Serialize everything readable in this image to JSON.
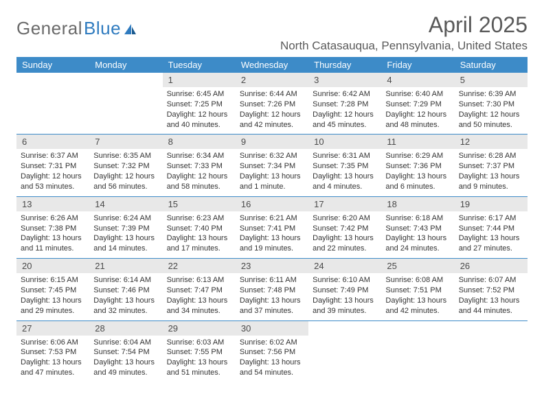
{
  "brand": {
    "part1": "General",
    "part2": "Blue"
  },
  "title": "April 2025",
  "location": "North Catasauqua, Pennsylvania, United States",
  "colors": {
    "header_bg": "#3d8bc8",
    "header_text": "#ffffff",
    "daynum_bg": "#e8e8e8",
    "text": "#333333",
    "title_color": "#595959",
    "border": "#3d8bc8"
  },
  "fonts": {
    "title_size": 32,
    "location_size": 17,
    "dow_size": 13,
    "body_size": 11
  },
  "dow": [
    "Sunday",
    "Monday",
    "Tuesday",
    "Wednesday",
    "Thursday",
    "Friday",
    "Saturday"
  ],
  "weeks": [
    [
      {
        "n": "",
        "empty": true
      },
      {
        "n": "",
        "empty": true
      },
      {
        "n": "1",
        "sr": "Sunrise: 6:45 AM",
        "ss": "Sunset: 7:25 PM",
        "dl": "Daylight: 12 hours and 40 minutes."
      },
      {
        "n": "2",
        "sr": "Sunrise: 6:44 AM",
        "ss": "Sunset: 7:26 PM",
        "dl": "Daylight: 12 hours and 42 minutes."
      },
      {
        "n": "3",
        "sr": "Sunrise: 6:42 AM",
        "ss": "Sunset: 7:28 PM",
        "dl": "Daylight: 12 hours and 45 minutes."
      },
      {
        "n": "4",
        "sr": "Sunrise: 6:40 AM",
        "ss": "Sunset: 7:29 PM",
        "dl": "Daylight: 12 hours and 48 minutes."
      },
      {
        "n": "5",
        "sr": "Sunrise: 6:39 AM",
        "ss": "Sunset: 7:30 PM",
        "dl": "Daylight: 12 hours and 50 minutes."
      }
    ],
    [
      {
        "n": "6",
        "sr": "Sunrise: 6:37 AM",
        "ss": "Sunset: 7:31 PM",
        "dl": "Daylight: 12 hours and 53 minutes."
      },
      {
        "n": "7",
        "sr": "Sunrise: 6:35 AM",
        "ss": "Sunset: 7:32 PM",
        "dl": "Daylight: 12 hours and 56 minutes."
      },
      {
        "n": "8",
        "sr": "Sunrise: 6:34 AM",
        "ss": "Sunset: 7:33 PM",
        "dl": "Daylight: 12 hours and 58 minutes."
      },
      {
        "n": "9",
        "sr": "Sunrise: 6:32 AM",
        "ss": "Sunset: 7:34 PM",
        "dl": "Daylight: 13 hours and 1 minute."
      },
      {
        "n": "10",
        "sr": "Sunrise: 6:31 AM",
        "ss": "Sunset: 7:35 PM",
        "dl": "Daylight: 13 hours and 4 minutes."
      },
      {
        "n": "11",
        "sr": "Sunrise: 6:29 AM",
        "ss": "Sunset: 7:36 PM",
        "dl": "Daylight: 13 hours and 6 minutes."
      },
      {
        "n": "12",
        "sr": "Sunrise: 6:28 AM",
        "ss": "Sunset: 7:37 PM",
        "dl": "Daylight: 13 hours and 9 minutes."
      }
    ],
    [
      {
        "n": "13",
        "sr": "Sunrise: 6:26 AM",
        "ss": "Sunset: 7:38 PM",
        "dl": "Daylight: 13 hours and 11 minutes."
      },
      {
        "n": "14",
        "sr": "Sunrise: 6:24 AM",
        "ss": "Sunset: 7:39 PM",
        "dl": "Daylight: 13 hours and 14 minutes."
      },
      {
        "n": "15",
        "sr": "Sunrise: 6:23 AM",
        "ss": "Sunset: 7:40 PM",
        "dl": "Daylight: 13 hours and 17 minutes."
      },
      {
        "n": "16",
        "sr": "Sunrise: 6:21 AM",
        "ss": "Sunset: 7:41 PM",
        "dl": "Daylight: 13 hours and 19 minutes."
      },
      {
        "n": "17",
        "sr": "Sunrise: 6:20 AM",
        "ss": "Sunset: 7:42 PM",
        "dl": "Daylight: 13 hours and 22 minutes."
      },
      {
        "n": "18",
        "sr": "Sunrise: 6:18 AM",
        "ss": "Sunset: 7:43 PM",
        "dl": "Daylight: 13 hours and 24 minutes."
      },
      {
        "n": "19",
        "sr": "Sunrise: 6:17 AM",
        "ss": "Sunset: 7:44 PM",
        "dl": "Daylight: 13 hours and 27 minutes."
      }
    ],
    [
      {
        "n": "20",
        "sr": "Sunrise: 6:15 AM",
        "ss": "Sunset: 7:45 PM",
        "dl": "Daylight: 13 hours and 29 minutes."
      },
      {
        "n": "21",
        "sr": "Sunrise: 6:14 AM",
        "ss": "Sunset: 7:46 PM",
        "dl": "Daylight: 13 hours and 32 minutes."
      },
      {
        "n": "22",
        "sr": "Sunrise: 6:13 AM",
        "ss": "Sunset: 7:47 PM",
        "dl": "Daylight: 13 hours and 34 minutes."
      },
      {
        "n": "23",
        "sr": "Sunrise: 6:11 AM",
        "ss": "Sunset: 7:48 PM",
        "dl": "Daylight: 13 hours and 37 minutes."
      },
      {
        "n": "24",
        "sr": "Sunrise: 6:10 AM",
        "ss": "Sunset: 7:49 PM",
        "dl": "Daylight: 13 hours and 39 minutes."
      },
      {
        "n": "25",
        "sr": "Sunrise: 6:08 AM",
        "ss": "Sunset: 7:51 PM",
        "dl": "Daylight: 13 hours and 42 minutes."
      },
      {
        "n": "26",
        "sr": "Sunrise: 6:07 AM",
        "ss": "Sunset: 7:52 PM",
        "dl": "Daylight: 13 hours and 44 minutes."
      }
    ],
    [
      {
        "n": "27",
        "sr": "Sunrise: 6:06 AM",
        "ss": "Sunset: 7:53 PM",
        "dl": "Daylight: 13 hours and 47 minutes."
      },
      {
        "n": "28",
        "sr": "Sunrise: 6:04 AM",
        "ss": "Sunset: 7:54 PM",
        "dl": "Daylight: 13 hours and 49 minutes."
      },
      {
        "n": "29",
        "sr": "Sunrise: 6:03 AM",
        "ss": "Sunset: 7:55 PM",
        "dl": "Daylight: 13 hours and 51 minutes."
      },
      {
        "n": "30",
        "sr": "Sunrise: 6:02 AM",
        "ss": "Sunset: 7:56 PM",
        "dl": "Daylight: 13 hours and 54 minutes."
      },
      {
        "n": "",
        "empty": true
      },
      {
        "n": "",
        "empty": true
      },
      {
        "n": "",
        "empty": true
      }
    ]
  ]
}
